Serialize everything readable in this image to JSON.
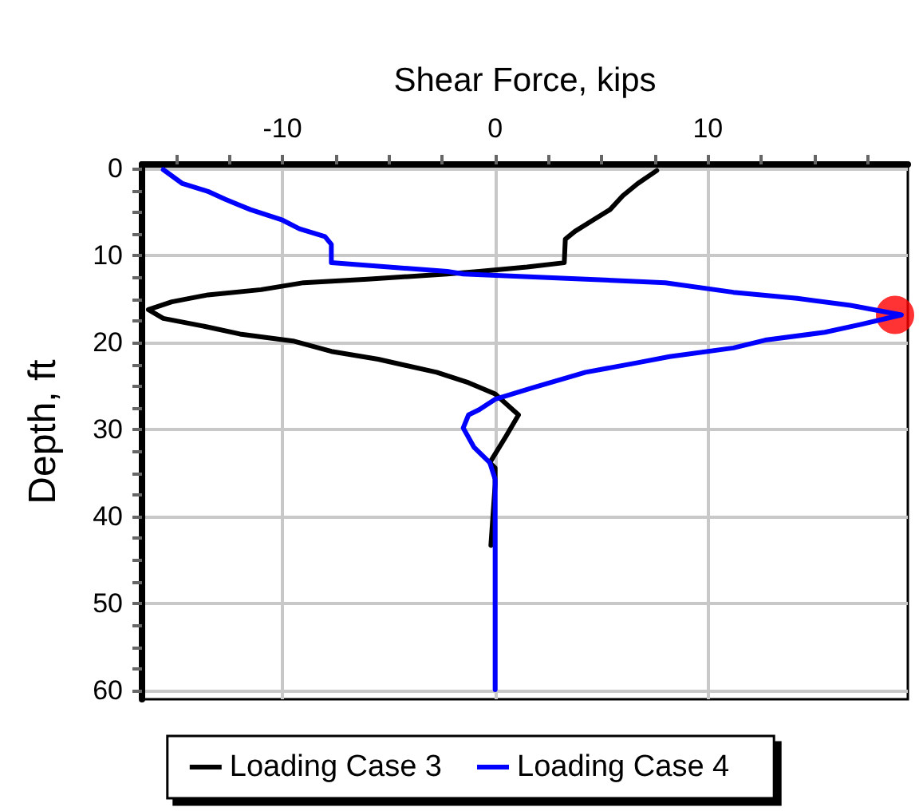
{
  "chart_data": {
    "type": "line",
    "xlabel": "Shear Force, kips",
    "ylabel": "Depth, ft",
    "xlim": [
      -16.6,
      19.4
    ],
    "ylim": [
      61,
      -0.5
    ],
    "xticks": [
      {
        "value": -15,
        "label": null
      },
      {
        "value": -12.5,
        "label": null
      },
      -10,
      {
        "value": -7.5,
        "label": null
      },
      {
        "value": -5,
        "label": null
      },
      {
        "value": -2.5,
        "label": null
      },
      0,
      {
        "value": 2.5,
        "label": null
      },
      {
        "value": 5,
        "label": null
      },
      {
        "value": 7.5,
        "label": null
      },
      10,
      {
        "value": 12.5,
        "label": null
      },
      {
        "value": 15,
        "label": null
      },
      {
        "value": 17.5,
        "label": null
      }
    ],
    "yticks": [
      0,
      {
        "value": 2.5,
        "label": null
      },
      {
        "value": 5,
        "label": null
      },
      {
        "value": 7.5,
        "label": null
      },
      10,
      {
        "value": 12.5,
        "label": null
      },
      {
        "value": 15,
        "label": null
      },
      {
        "value": 17.5,
        "label": null
      },
      20,
      {
        "value": 22.5,
        "label": null
      },
      {
        "value": 25,
        "label": null
      },
      {
        "value": 27.5,
        "label": null
      },
      30,
      {
        "value": 32.5,
        "label": null
      },
      {
        "value": 35,
        "label": null
      },
      {
        "value": 37.5,
        "label": null
      },
      40,
      {
        "value": 42.5,
        "label": null
      },
      {
        "value": 45,
        "label": null
      },
      {
        "value": 47.5,
        "label": null
      },
      50,
      {
        "value": 52.5,
        "label": null
      },
      {
        "value": 55,
        "label": null
      },
      {
        "value": 57.5,
        "label": null
      },
      60
    ],
    "grid": true,
    "legend": "bottom",
    "line_style": "solid",
    "series": [
      {
        "name": "Loading Case 3",
        "color": "#000000",
        "x": [
          7.6,
          6.7,
          6.0,
          5.4,
          4.6,
          3.75,
          3.3,
          3.25,
          1.5,
          -0.75,
          -2.25,
          -6.0,
          -9.0,
          -11.0,
          -13.5,
          -15.2,
          -16.3,
          -15.6,
          -13.5,
          -12.0,
          -9.5,
          -7.7,
          -5.5,
          -2.75,
          -1.25,
          0,
          1.1,
          0.5,
          -0.25,
          0,
          0,
          -0.2
        ],
        "values": [
          0.2,
          1.7,
          3.1,
          4.7,
          5.9,
          7.2,
          8.1,
          10.8,
          11.3,
          11.8,
          12.1,
          12.7,
          13.1,
          13.9,
          14.5,
          15.3,
          16.2,
          17.2,
          18.2,
          19.0,
          19.8,
          21.0,
          21.9,
          23.4,
          24.6,
          25.9,
          28.3,
          30.8,
          33.8,
          34.4,
          36.3,
          43.3
        ]
      },
      {
        "name": "Loading Case 4",
        "color": "#0000ff",
        "x": [
          -15.6,
          -14.7,
          -13.5,
          -12.7,
          -11.5,
          -10.0,
          -9.2,
          -8.0,
          -7.7,
          -7.7,
          -2.25,
          -1.5,
          4.25,
          8.0,
          11.2,
          14.2,
          16.7,
          19.1,
          17.2,
          15.5,
          12.7,
          11.2,
          8.2,
          6.7,
          4.25,
          1.75,
          0,
          -0.75,
          -1.25,
          -1.5,
          -1.0,
          -0.25,
          0,
          0
        ],
        "values": [
          0.1,
          1.7,
          2.6,
          3.5,
          4.7,
          5.9,
          6.9,
          7.8,
          8.7,
          10.8,
          11.8,
          12.1,
          12.7,
          13.1,
          14.2,
          14.9,
          15.7,
          16.8,
          17.9,
          18.8,
          19.7,
          20.6,
          21.6,
          22.3,
          23.4,
          25.2,
          26.5,
          27.7,
          28.3,
          29.8,
          32.0,
          33.8,
          35.7,
          59.9
        ]
      },
      {
        "type": "scatter",
        "color": "#ff0000",
        "x": [
          18.8
        ],
        "values": [
          16.8
        ]
      }
    ]
  }
}
